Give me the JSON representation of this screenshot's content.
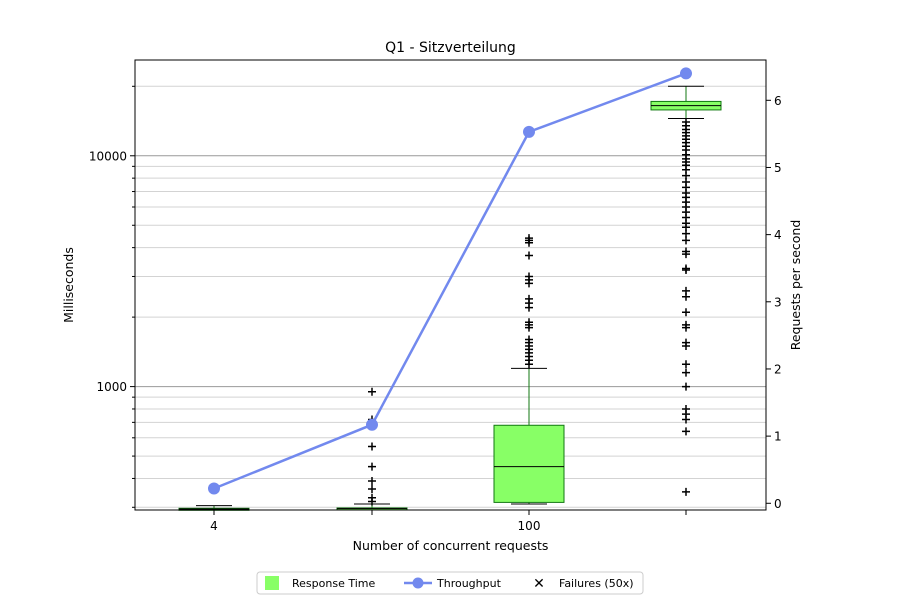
{
  "chart_data": {
    "type": "box",
    "title": "Q1 - Sitzverteilung",
    "xlabel": "Number of concurrent requests",
    "ylabel": "Milliseconds",
    "y2label": "Requests per second",
    "x_tick_labels": [
      "4",
      "",
      "100",
      ""
    ],
    "y_scale": "log",
    "ylim": [
      292,
      26000
    ],
    "y_major_ticks": [
      1000,
      10000
    ],
    "y_major_tick_labels": [
      "1000",
      "10000"
    ],
    "y_minor_gridlines": [
      300,
      400,
      500,
      600,
      700,
      800,
      900,
      2000,
      3000,
      4000,
      5000,
      6000,
      7000,
      8000,
      9000,
      20000
    ],
    "y2lim": [
      -0.1,
      6.6
    ],
    "y2_ticks": [
      0,
      1,
      2,
      3,
      4,
      5,
      6
    ],
    "y2_tick_labels": [
      "0",
      "1",
      "2",
      "3",
      "4",
      "5",
      "6"
    ],
    "grid": true,
    "legend_position": "bottom-center",
    "legend": [
      {
        "label": "Response Time",
        "marker": "square",
        "color": "#88ff66"
      },
      {
        "label": "Throughput",
        "marker": "line-circle",
        "color": "#7289ee"
      },
      {
        "label": "Failures (50x)",
        "marker": "x",
        "color": "#ee0000"
      }
    ],
    "colors": {
      "box_fill": "#88ff66",
      "box_edge": "#117711",
      "whisker": "#117711",
      "median": "#000000",
      "throughput": "#7289ee",
      "grid_minor": "#d3d3d3",
      "grid_major": "#999999"
    },
    "response_time_boxes": [
      {
        "category": "4",
        "whislo": 292,
        "q1": 294,
        "med": 295,
        "q3": 297,
        "whishi": 305,
        "fliers": []
      },
      {
        "category": "",
        "whislo": 292,
        "q1": 294,
        "med": 296,
        "q3": 298,
        "whishi": 310,
        "fliers": [
          318,
          330,
          360,
          390,
          450,
          550,
          720,
          950
        ]
      },
      {
        "category": "100",
        "whislo": 310,
        "q1": 315,
        "med": 450,
        "q3": 680,
        "whishi": 1200,
        "fliers": [
          1250,
          1300,
          1350,
          1400,
          1450,
          1500,
          1550,
          1600,
          1800,
          1850,
          1900,
          2200,
          2300,
          2400,
          2800,
          2900,
          3000,
          3700,
          4200,
          4300,
          4400
        ]
      },
      {
        "category": "",
        "whislo": 14500,
        "q1": 15800,
        "med": 16500,
        "q3": 17200,
        "whishi": 20000,
        "fliers": [
          350,
          640,
          720,
          760,
          800,
          1000,
          1150,
          1250,
          1500,
          1550,
          1800,
          1850,
          2100,
          2450,
          2600,
          3200,
          3250,
          3750,
          3850,
          4300,
          4600,
          4900,
          5100,
          5400,
          5700,
          6000,
          6300,
          6600,
          6900,
          7300,
          7700,
          8200,
          8700,
          9100,
          9400,
          9700,
          10100,
          10600,
          11000,
          11400,
          11800,
          12200,
          12600,
          13000,
          13500,
          14000
        ]
      }
    ],
    "throughput_series": {
      "name": "Throughput",
      "values": [
        0.22,
        1.17,
        5.53,
        6.4
      ]
    },
    "failures_series": {
      "name": "Failures (50x)",
      "values": []
    }
  }
}
